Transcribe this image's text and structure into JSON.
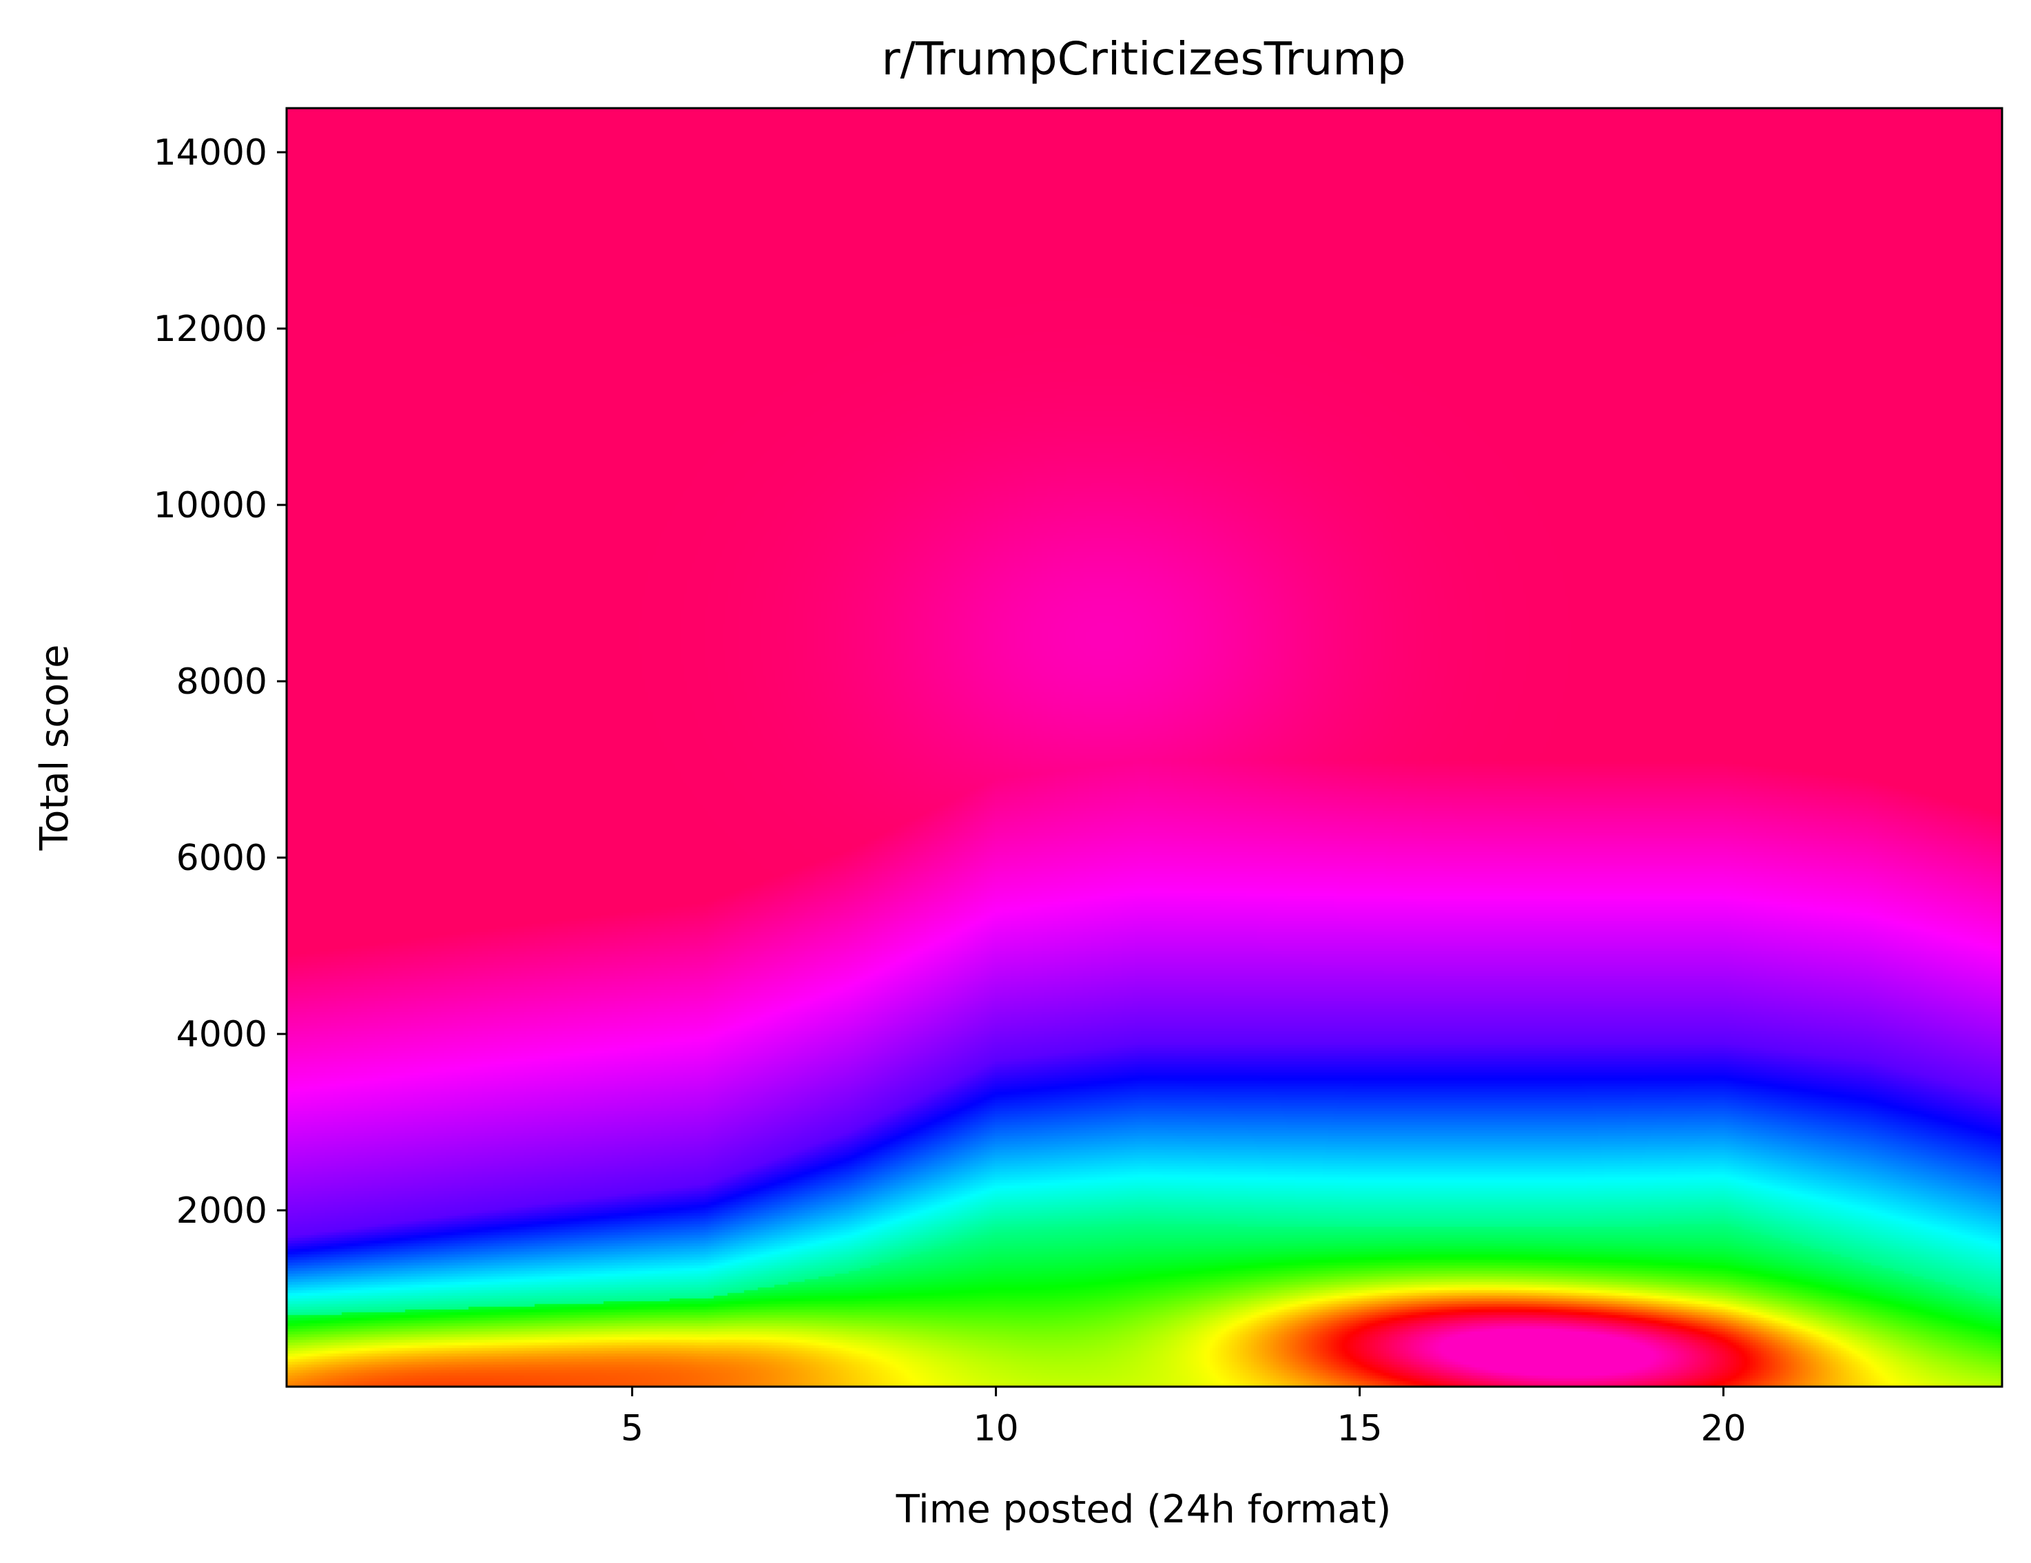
{
  "chart_data": {
    "type": "heatmap",
    "title": "r/TrumpCriticizesTrump",
    "xlabel": "Time posted (24h format)",
    "ylabel": "Total score",
    "xlim": [
      0.25,
      23.83
    ],
    "ylim": [
      0,
      14500
    ],
    "x_ticks": [
      5,
      10,
      15,
      20
    ],
    "x_tick_labels": [
      "5",
      "10",
      "15",
      "20"
    ],
    "y_ticks": [
      2000,
      4000,
      6000,
      8000,
      10000,
      12000,
      14000
    ],
    "y_tick_labels": [
      "2000",
      "4000",
      "6000",
      "8000",
      "10000",
      "12000",
      "14000"
    ],
    "colormap": "gist_rainbow",
    "grid": false,
    "legend": "none",
    "low_value_color": "#ff0033",
    "high_value_color": "#ff00bf",
    "relative_density_peaks": [
      {
        "x": 18.5,
        "y": 400,
        "level": 1.0
      },
      {
        "x": 16.0,
        "y": 700,
        "level": 0.85
      },
      {
        "x": 6.0,
        "y": 450,
        "level": 0.6
      },
      {
        "x": 1.5,
        "y": 300,
        "level": 0.55
      }
    ],
    "contour_profiles": {
      "x": [
        0.25,
        3,
        6,
        8,
        10,
        12,
        15,
        18,
        20,
        22,
        23.83
      ],
      "cyan_boundary_y": [
        800,
        900,
        1000,
        1300,
        1750,
        1850,
        1800,
        1800,
        1850,
        1400,
        1000
      ],
      "yellow_boundary_y": [
        1700,
        2000,
        2300,
        2900,
        3700,
        3900,
        3900,
        3900,
        3900,
        3700,
        3300
      ]
    }
  }
}
